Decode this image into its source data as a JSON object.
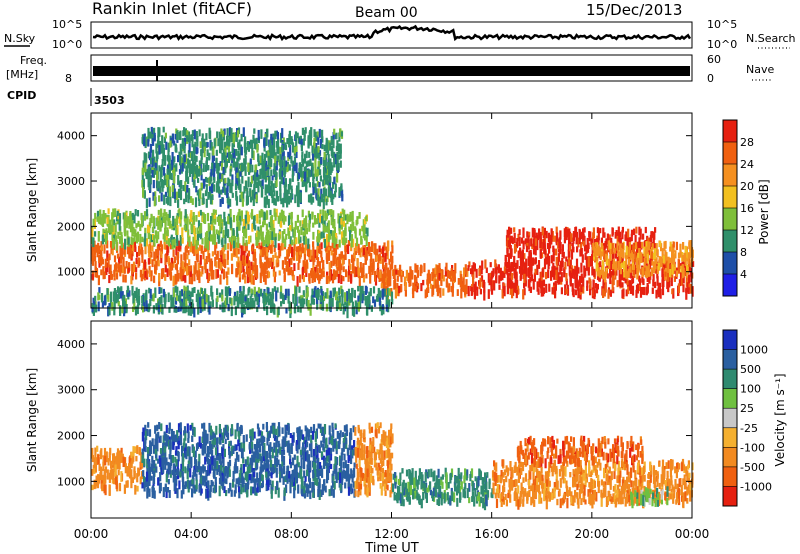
{
  "header": {
    "station": "Rankin Inlet (fitACF)",
    "beam": "Beam 00",
    "date": "15/Dec/2013"
  },
  "top_panels": {
    "nsky_label": "N.Sky",
    "nsky_ticks": [
      "10^5",
      "10^0"
    ],
    "nsearch_label": "N.Search",
    "nsearch_ticks": [
      "10^5",
      "10^0"
    ],
    "freq_label": "Freq.",
    "freq_unit": "[MHz]",
    "freq_tick": "8",
    "nave_label": "Nave",
    "nave_ticks": [
      "60",
      "0"
    ],
    "cpid_label": "CPID",
    "cpid_value": "3503"
  },
  "axes": {
    "x_ticks": [
      "00:00",
      "04:00",
      "08:00",
      "12:00",
      "16:00",
      "20:00",
      "00:00"
    ],
    "x_label": "Time UT",
    "y_ticks": [
      "1000",
      "2000",
      "3000",
      "4000"
    ],
    "y_label": "Slant Range [km]"
  },
  "colorbars": {
    "power": {
      "label": "Power [dB]",
      "ticks": [
        "4",
        "8",
        "12",
        "16",
        "20",
        "24",
        "28"
      ],
      "colors": [
        "#1f1fe6",
        "#1e4fa8",
        "#2f8f6a",
        "#7fbf3a",
        "#f2c020",
        "#f59020",
        "#f06010",
        "#e62010"
      ]
    },
    "velocity": {
      "label": "Velocity [m s⁻¹]",
      "ticks": [
        "1000",
        "500",
        "100",
        "25",
        "-25",
        "-100",
        "-500",
        "-1000"
      ],
      "colors": [
        "#1a2fbf",
        "#2a5fa0",
        "#2f8a70",
        "#6fc040",
        "#c8c8c8",
        "#f5b030",
        "#f28a20",
        "#f06010",
        "#e62010"
      ]
    }
  },
  "chart_data": [
    {
      "type": "heatmap",
      "title": "",
      "quantity": "Power",
      "unit": "dB",
      "x": [
        "00:00",
        "02:00",
        "04:00",
        "06:00",
        "08:00",
        "10:00",
        "12:00",
        "14:00",
        "16:00",
        "18:00",
        "20:00",
        "22:00",
        "24:00"
      ],
      "xlabel": "Time UT",
      "ylabel": "Slant Range [km]",
      "ylim": [
        200,
        4500
      ],
      "bands": [
        {
          "t": [
            0,
            12
          ],
          "range": [
            900,
            1700
          ],
          "value": 24
        },
        {
          "t": [
            0,
            11
          ],
          "range": [
            1700,
            2400
          ],
          "value": 12
        },
        {
          "t": [
            11.5,
            15
          ],
          "range": [
            600,
            1200
          ],
          "value": 24
        },
        {
          "t": [
            15,
            24
          ],
          "range": [
            600,
            1300
          ],
          "value": 28
        },
        {
          "t": [
            16.5,
            22.5
          ],
          "range": [
            1300,
            2000
          ],
          "value": 28
        },
        {
          "t": [
            20,
            24
          ],
          "range": [
            1000,
            1700
          ],
          "value": 20
        },
        {
          "t": [
            0,
            12
          ],
          "range": [
            200,
            700
          ],
          "value": 8
        },
        {
          "t": [
            2,
            10
          ],
          "range": [
            2600,
            4200
          ],
          "value": 8
        }
      ],
      "colorbar_ticks": [
        4,
        8,
        12,
        16,
        20,
        24,
        28
      ]
    },
    {
      "type": "heatmap",
      "title": "",
      "quantity": "Velocity",
      "unit": "m s-1",
      "x": [
        "00:00",
        "02:00",
        "04:00",
        "06:00",
        "08:00",
        "10:00",
        "12:00",
        "14:00",
        "16:00",
        "18:00",
        "20:00",
        "22:00",
        "24:00"
      ],
      "xlabel": "Time UT",
      "ylabel": "Slant Range [km]",
      "ylim": [
        200,
        4500
      ],
      "bands": [
        {
          "t": [
            0,
            2
          ],
          "range": [
            900,
            1800
          ],
          "value": -500
        },
        {
          "t": [
            2,
            10.5
          ],
          "range": [
            800,
            2300
          ],
          "value": 500
        },
        {
          "t": [
            10.5,
            12
          ],
          "range": [
            800,
            2300
          ],
          "value": -500
        },
        {
          "t": [
            12,
            16
          ],
          "range": [
            600,
            1300
          ],
          "value": 100
        },
        {
          "t": [
            16,
            24
          ],
          "range": [
            600,
            1500
          ],
          "value": -500
        },
        {
          "t": [
            17,
            22
          ],
          "range": [
            1500,
            2000
          ],
          "value": -1000
        },
        {
          "t": [
            21.5,
            23
          ],
          "range": [
            600,
            900
          ],
          "value": 25
        }
      ],
      "colorbar_ticks": [
        1000,
        500,
        100,
        25,
        -25,
        -100,
        -500,
        -1000
      ]
    }
  ]
}
